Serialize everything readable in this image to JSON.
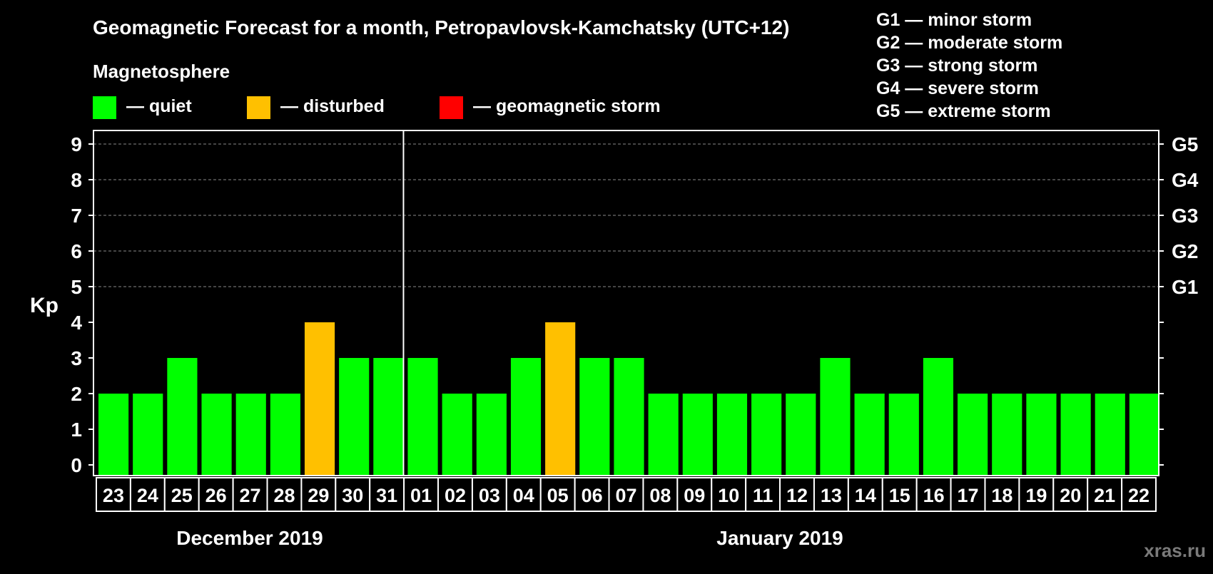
{
  "chart_data": {
    "type": "bar",
    "title": "Geomagnetic Forecast for a month, Petropavlovsk-Kamchatsky (UTC+12)",
    "ylabel": "Kp",
    "ylim": [
      0,
      9
    ],
    "y_ticks": [
      "0",
      "1",
      "2",
      "3",
      "4",
      "5",
      "6",
      "7",
      "8",
      "9"
    ],
    "right_axis": [
      {
        "kp": 5,
        "label": "G1"
      },
      {
        "kp": 6,
        "label": "G2"
      },
      {
        "kp": 7,
        "label": "G3"
      },
      {
        "kp": 8,
        "label": "G4"
      },
      {
        "kp": 9,
        "label": "G5"
      }
    ],
    "categories": [
      "23",
      "24",
      "25",
      "26",
      "27",
      "28",
      "29",
      "30",
      "31",
      "01",
      "02",
      "03",
      "04",
      "05",
      "06",
      "07",
      "08",
      "09",
      "10",
      "11",
      "12",
      "13",
      "14",
      "15",
      "16",
      "17",
      "18",
      "19",
      "20",
      "21",
      "22"
    ],
    "values": [
      2,
      2,
      3,
      2,
      2,
      2,
      4,
      3,
      3,
      3,
      2,
      2,
      3,
      4,
      3,
      3,
      2,
      2,
      2,
      2,
      2,
      3,
      2,
      2,
      3,
      2,
      2,
      2,
      2,
      2,
      2
    ],
    "month_labels": [
      "December 2019",
      "January 2019"
    ],
    "month_split_after": 9,
    "grid": "dashed at Kp 5-9",
    "legend_title": "Magnetosphere",
    "legend": [
      {
        "label": "— quiet",
        "color": "#00ff00"
      },
      {
        "label": "— disturbed",
        "color": "#ffc000"
      },
      {
        "label": "— geomagnetic storm",
        "color": "#ff0000"
      }
    ],
    "g_scale": [
      "G1 — minor storm",
      "G2 — moderate storm",
      "G3 — strong storm",
      "G4 — severe storm",
      "G5 — extreme storm"
    ],
    "watermark": "xras.ru"
  }
}
